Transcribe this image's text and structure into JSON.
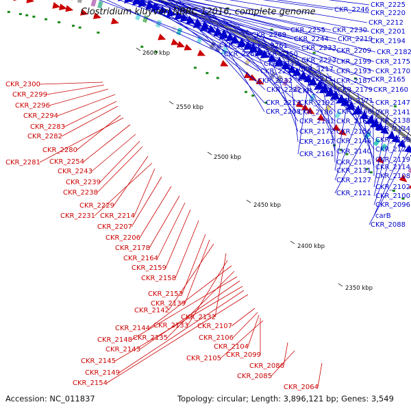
{
  "title": "Clostridium kluyveri NBRC 12016, complete genome",
  "accession_text": "Accession: NC_011837",
  "summary_text": "Topology: circular; Length: 3,896,121 bp; Genes: 3,549",
  "ticks": [
    "2600 kbp",
    "2550 kbp",
    "2500 kbp",
    "2450 kbp",
    "2400 kbp",
    "2350 kbp"
  ],
  "colors": {
    "reverse_strand": "#cc0000",
    "forward_strand": "#0000cc",
    "backbone": "#777777",
    "rna_marks": "#1a8a1a"
  },
  "red_labels": [
    "CKR_2300",
    "CKR_2299",
    "CKR_2296",
    "CKR_2294",
    "CKR_2283",
    "CKR_2282",
    "CKR_2280",
    "CKR_2281",
    "CKR_2254",
    "CKR_2243",
    "CKR_2239",
    "CKR_2238",
    "CKR_2229",
    "CKR_2231",
    "CKR_2214",
    "CKR_2207",
    "CKR_2206",
    "CKR_2178",
    "CKR_2164",
    "CKR_2159",
    "CKR_2158",
    "CKR_2153",
    "CKR_2139",
    "CKR_2142",
    "CKR_2132",
    "CKR_2133",
    "CKR_2144",
    "CKR_2135",
    "CKR_2148",
    "CKR_2143",
    "CKR_2145",
    "CKR_2149",
    "CKR_2154",
    "CKR_2107",
    "CKR_2106",
    "CKR_2104",
    "CKR_2099",
    "CKR_2105",
    "CKR_2086",
    "CKR_2085",
    "CKR_2064"
  ],
  "blue_labels": [
    "CKR_2246",
    "CKR_2225",
    "CKR_2220",
    "CKR_2212",
    "CKR_2255",
    "CKR_2230",
    "CKR_2201",
    "CKR_2269",
    "CKR_2244",
    "CKR_2219",
    "CKR_2194",
    "CKR_2278",
    "CKR_2261",
    "CKR_2233",
    "CKR_2209",
    "CKR_2182",
    "CKR_2268",
    "CKR_2250",
    "CKR_2223",
    "CKR_2199",
    "CKR_2175",
    "CKR_2245",
    "CKR_2217",
    "CKR_2193",
    "CKR_2170",
    "CKR_2240",
    "CKR_2211",
    "CKR_2187",
    "CKR_2165",
    "CKR_2232",
    "CKR_2202",
    "CKR_2179",
    "CKR_2160",
    "CKR_2222",
    "CKR_2213",
    "CKR_2192",
    "CKR_2171",
    "CKR_2147",
    "CKR_2208",
    "CKR_2186",
    "CKR_2166",
    "CKR_2141",
    "CKR_2181",
    "CKR_2162",
    "CKR_2138",
    "CKR_2172",
    "CKR_2156",
    "CKR_2134",
    "CKR_2167",
    "CKR_2146",
    "CKR_2128",
    "CKR_2161",
    "CKR_2140",
    "CKR_2123",
    "CKR_2136",
    "CKR_2119",
    "CKR_2131",
    "CKR_2114",
    "CKR_2127",
    "CKR_2108",
    "CKR_2121",
    "CKR_2102",
    "CKR_2100",
    "CKR_2096",
    "carB",
    "CKR_2088"
  ]
}
